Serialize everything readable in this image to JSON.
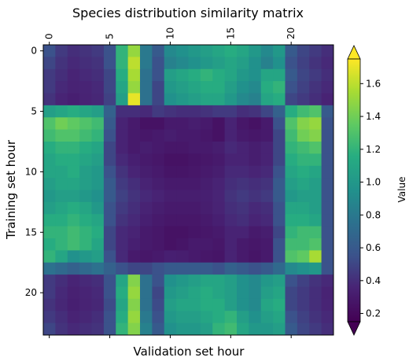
{
  "chart_data": {
    "type": "heatmap",
    "title": "Species distribution similarity matrix",
    "xlabel": "Validation set hour",
    "ylabel": "Training set hour",
    "x_ticks": [
      0,
      5,
      10,
      15,
      20
    ],
    "y_ticks": [
      0,
      5,
      10,
      15,
      20
    ],
    "x_tick_labels": [
      "0",
      "5",
      "10",
      "15",
      "20"
    ],
    "y_tick_labels": [
      "0",
      "5",
      "10",
      "15",
      "20"
    ],
    "x_tick_position": "top",
    "colorbar": {
      "label": "Value",
      "range": [
        0.15,
        1.75
      ],
      "ticks": [
        0.2,
        0.4,
        0.6,
        0.8,
        1.0,
        1.2,
        1.4,
        1.6
      ],
      "tick_labels": [
        "0.2",
        "0.4",
        "0.6",
        "0.8",
        "1.0",
        "1.2",
        "1.4",
        "1.6"
      ],
      "extend": "both",
      "colormap": "viridis"
    },
    "matrix": [
      [
        0.55,
        0.45,
        0.4,
        0.42,
        0.45,
        0.55,
        1.2,
        1.5,
        0.8,
        0.6,
        0.9,
        0.95,
        1.0,
        1.05,
        1.1,
        1.15,
        1.1,
        1.0,
        0.9,
        1.0,
        0.6,
        0.5,
        0.45,
        0.4
      ],
      [
        0.5,
        0.42,
        0.38,
        0.4,
        0.42,
        0.55,
        1.2,
        1.6,
        0.8,
        0.55,
        0.85,
        0.9,
        0.95,
        1.0,
        1.05,
        1.1,
        1.05,
        0.95,
        0.85,
        0.95,
        0.55,
        0.48,
        0.42,
        0.38
      ],
      [
        0.45,
        0.4,
        0.36,
        0.38,
        0.4,
        0.5,
        1.15,
        1.55,
        0.75,
        0.55,
        1.05,
        1.1,
        1.15,
        1.2,
        1.15,
        1.1,
        1.0,
        0.95,
        1.1,
        1.1,
        0.6,
        0.5,
        0.45,
        0.4
      ],
      [
        0.45,
        0.38,
        0.35,
        0.36,
        0.38,
        0.5,
        1.1,
        1.5,
        0.75,
        0.5,
        1.0,
        1.05,
        1.1,
        1.15,
        1.15,
        1.05,
        0.95,
        0.9,
        1.15,
        1.2,
        0.55,
        0.48,
        0.42,
        0.38
      ],
      [
        0.42,
        0.36,
        0.33,
        0.35,
        0.37,
        0.48,
        1.05,
        1.7,
        0.75,
        0.5,
        0.95,
        1.0,
        1.05,
        1.1,
        1.1,
        1.0,
        0.9,
        0.85,
        1.1,
        1.15,
        0.5,
        0.45,
        0.4,
        0.35
      ],
      [
        1.05,
        1.1,
        1.15,
        1.1,
        1.05,
        0.65,
        0.4,
        0.4,
        0.38,
        0.45,
        0.42,
        0.4,
        0.4,
        0.42,
        0.45,
        0.45,
        0.4,
        0.42,
        0.5,
        0.65,
        1.15,
        1.25,
        1.3,
        0.6
      ],
      [
        1.3,
        1.4,
        1.35,
        1.3,
        1.25,
        0.6,
        0.35,
        0.3,
        0.25,
        0.25,
        0.3,
        0.3,
        0.32,
        0.3,
        0.25,
        0.35,
        0.28,
        0.25,
        0.3,
        0.55,
        1.3,
        1.45,
        1.5,
        0.55
      ],
      [
        1.25,
        1.3,
        1.3,
        1.25,
        1.2,
        0.55,
        0.35,
        0.3,
        0.28,
        0.3,
        0.32,
        0.3,
        0.3,
        0.28,
        0.25,
        0.35,
        0.3,
        0.28,
        0.3,
        0.5,
        1.25,
        1.4,
        1.45,
        0.55
      ],
      [
        1.15,
        1.2,
        1.2,
        1.15,
        1.1,
        0.5,
        0.35,
        0.3,
        0.32,
        0.3,
        0.28,
        0.28,
        0.3,
        0.3,
        0.32,
        0.38,
        0.35,
        0.32,
        0.35,
        0.5,
        1.2,
        1.25,
        1.3,
        0.55
      ],
      [
        1.1,
        1.15,
        1.15,
        1.1,
        1.05,
        0.5,
        0.38,
        0.33,
        0.3,
        0.28,
        0.25,
        0.25,
        0.27,
        0.28,
        0.3,
        0.35,
        0.35,
        0.32,
        0.35,
        0.5,
        1.15,
        1.2,
        1.2,
        0.55
      ],
      [
        1.1,
        1.1,
        1.15,
        1.05,
        1.0,
        0.55,
        0.42,
        0.36,
        0.32,
        0.3,
        0.27,
        0.27,
        0.28,
        0.3,
        0.32,
        0.38,
        0.38,
        0.36,
        0.38,
        0.55,
        1.1,
        1.15,
        1.1,
        0.55
      ],
      [
        1.05,
        1.1,
        1.1,
        1.05,
        1.0,
        0.6,
        0.45,
        0.4,
        0.35,
        0.32,
        0.3,
        0.3,
        0.3,
        0.32,
        0.35,
        0.4,
        0.42,
        0.4,
        0.42,
        0.6,
        1.05,
        1.1,
        1.05,
        0.55
      ],
      [
        1.0,
        1.05,
        1.05,
        1.0,
        0.95,
        0.6,
        0.48,
        0.42,
        0.38,
        0.35,
        0.32,
        0.32,
        0.32,
        0.33,
        0.36,
        0.42,
        0.45,
        0.42,
        0.45,
        0.6,
        1.0,
        1.05,
        1.05,
        0.55
      ],
      [
        1.05,
        1.1,
        1.15,
        1.1,
        1.0,
        0.55,
        0.45,
        0.4,
        0.35,
        0.32,
        0.3,
        0.3,
        0.3,
        0.32,
        0.35,
        0.4,
        0.42,
        0.38,
        0.4,
        0.55,
        1.1,
        1.1,
        1.05,
        0.55
      ],
      [
        1.15,
        1.15,
        1.2,
        1.15,
        1.1,
        0.55,
        0.42,
        0.38,
        0.33,
        0.3,
        0.28,
        0.28,
        0.28,
        0.3,
        0.33,
        0.38,
        0.4,
        0.36,
        0.38,
        0.55,
        1.15,
        1.15,
        1.1,
        0.55
      ],
      [
        1.2,
        1.2,
        1.25,
        1.2,
        1.15,
        0.5,
        0.38,
        0.35,
        0.3,
        0.28,
        0.25,
        0.25,
        0.27,
        0.28,
        0.3,
        0.35,
        0.35,
        0.3,
        0.32,
        0.5,
        1.2,
        1.25,
        1.25,
        0.55
      ],
      [
        1.15,
        1.2,
        1.25,
        1.2,
        1.1,
        0.5,
        0.38,
        0.33,
        0.3,
        0.28,
        0.25,
        0.27,
        0.3,
        0.3,
        0.28,
        0.35,
        0.3,
        0.28,
        0.3,
        0.55,
        1.25,
        1.25,
        1.3,
        0.55
      ],
      [
        1.2,
        1.1,
        0.95,
        1.0,
        1.05,
        0.55,
        0.38,
        0.3,
        0.28,
        0.3,
        0.33,
        0.32,
        0.3,
        0.28,
        0.27,
        0.35,
        0.3,
        0.27,
        0.3,
        0.55,
        1.3,
        1.35,
        1.55,
        0.55
      ],
      [
        0.75,
        0.7,
        0.65,
        0.7,
        0.75,
        0.65,
        0.55,
        0.5,
        0.5,
        0.55,
        0.6,
        0.6,
        0.6,
        0.6,
        0.55,
        0.65,
        0.6,
        0.55,
        0.6,
        0.7,
        0.9,
        0.95,
        1.0,
        0.55
      ],
      [
        0.45,
        0.4,
        0.36,
        0.38,
        0.4,
        0.55,
        1.1,
        1.45,
        0.75,
        0.55,
        0.95,
        1.0,
        1.05,
        1.1,
        1.1,
        1.05,
        0.95,
        0.9,
        1.0,
        1.05,
        0.55,
        0.48,
        0.42,
        0.38
      ],
      [
        0.45,
        0.38,
        0.34,
        0.36,
        0.38,
        0.55,
        1.15,
        1.5,
        0.75,
        0.5,
        1.0,
        1.05,
        1.1,
        1.15,
        1.1,
        1.05,
        0.95,
        0.9,
        1.05,
        1.1,
        0.5,
        0.45,
        0.4,
        0.35
      ],
      [
        0.42,
        0.37,
        0.33,
        0.35,
        0.37,
        0.52,
        1.1,
        1.45,
        0.75,
        0.52,
        1.05,
        1.1,
        1.1,
        1.15,
        1.15,
        1.05,
        0.95,
        0.9,
        1.1,
        1.15,
        0.5,
        0.45,
        0.4,
        0.36
      ],
      [
        0.45,
        0.4,
        0.35,
        0.37,
        0.4,
        0.55,
        1.15,
        1.5,
        0.8,
        0.55,
        1.0,
        1.05,
        1.05,
        1.1,
        1.15,
        1.2,
        1.05,
        0.95,
        1.05,
        1.1,
        0.55,
        0.48,
        0.42,
        0.38
      ],
      [
        0.5,
        0.42,
        0.38,
        0.4,
        0.42,
        0.55,
        1.2,
        1.45,
        0.85,
        0.6,
        0.95,
        1.0,
        1.0,
        1.05,
        1.2,
        1.25,
        1.1,
        1.0,
        1.0,
        1.05,
        0.6,
        0.5,
        0.45,
        0.4
      ]
    ]
  }
}
